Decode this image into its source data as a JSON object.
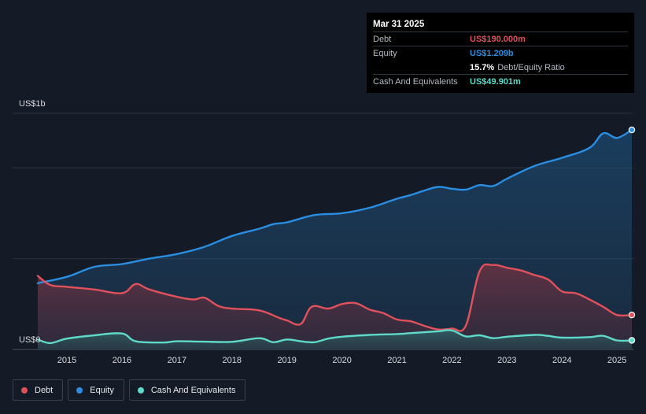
{
  "colors": {
    "debt": "#e0515c",
    "equity": "#2a8ee2",
    "cash": "#5fd9c9",
    "grid": "#2c3340",
    "axis_text": "#d6d9de"
  },
  "tooltip": {
    "date": "Mar 31 2025",
    "rows": {
      "debt": {
        "label": "Debt",
        "value": "US$190.000m"
      },
      "equity": {
        "label": "Equity",
        "value": "US$1.209b"
      },
      "ratio": {
        "value": "15.7%",
        "label": "Debt/Equity Ratio"
      },
      "cash": {
        "label": "Cash And Equivalents",
        "value": "US$49.901m"
      }
    }
  },
  "legend": {
    "debt": "Debt",
    "equity": "Equity",
    "cash": "Cash And Equivalents"
  },
  "chart_data": {
    "type": "area",
    "y_unit": "US$ millions",
    "ylim": [
      0,
      1300
    ],
    "xlim": [
      2014.47,
      2025.27
    ],
    "y_tick_labels": [
      {
        "value": 1300,
        "label": "US$1b"
      },
      {
        "value": 0,
        "label": "US$0"
      }
    ],
    "gridlines": [
      1300,
      1000,
      500,
      0
    ],
    "x_ticks": [
      2015,
      2016,
      2017,
      2018,
      2019,
      2020,
      2021,
      2022,
      2023,
      2024,
      2025
    ],
    "legend_position": "bottom-left",
    "series": [
      {
        "name": "Debt",
        "key": "debt",
        "points": [
          [
            2014.47,
            405
          ],
          [
            2014.7,
            355
          ],
          [
            2015.0,
            345
          ],
          [
            2015.5,
            330
          ],
          [
            2016.0,
            310
          ],
          [
            2016.25,
            360
          ],
          [
            2016.5,
            330
          ],
          [
            2017.0,
            290
          ],
          [
            2017.3,
            275
          ],
          [
            2017.5,
            285
          ],
          [
            2017.75,
            240
          ],
          [
            2018.0,
            225
          ],
          [
            2018.5,
            215
          ],
          [
            2018.85,
            175
          ],
          [
            2019.0,
            160
          ],
          [
            2019.25,
            140
          ],
          [
            2019.45,
            235
          ],
          [
            2019.75,
            225
          ],
          [
            2020.0,
            250
          ],
          [
            2020.25,
            255
          ],
          [
            2020.5,
            220
          ],
          [
            2020.75,
            200
          ],
          [
            2021.0,
            165
          ],
          [
            2021.25,
            155
          ],
          [
            2021.5,
            130
          ],
          [
            2021.75,
            110
          ],
          [
            2022.0,
            115
          ],
          [
            2022.25,
            130
          ],
          [
            2022.5,
            430
          ],
          [
            2022.75,
            465
          ],
          [
            2023.0,
            450
          ],
          [
            2023.25,
            435
          ],
          [
            2023.5,
            410
          ],
          [
            2023.75,
            385
          ],
          [
            2024.0,
            320
          ],
          [
            2024.25,
            310
          ],
          [
            2024.5,
            275
          ],
          [
            2024.75,
            235
          ],
          [
            2025.0,
            190
          ],
          [
            2025.27,
            190
          ]
        ]
      },
      {
        "name": "Equity",
        "key": "equity",
        "points": [
          [
            2014.47,
            365
          ],
          [
            2015.0,
            400
          ],
          [
            2015.5,
            455
          ],
          [
            2016.0,
            470
          ],
          [
            2016.5,
            500
          ],
          [
            2017.0,
            525
          ],
          [
            2017.5,
            565
          ],
          [
            2018.0,
            625
          ],
          [
            2018.5,
            665
          ],
          [
            2018.75,
            690
          ],
          [
            2019.0,
            700
          ],
          [
            2019.5,
            740
          ],
          [
            2020.0,
            750
          ],
          [
            2020.5,
            780
          ],
          [
            2021.0,
            830
          ],
          [
            2021.25,
            850
          ],
          [
            2021.5,
            875
          ],
          [
            2021.75,
            895
          ],
          [
            2022.0,
            885
          ],
          [
            2022.25,
            880
          ],
          [
            2022.5,
            905
          ],
          [
            2022.75,
            900
          ],
          [
            2023.0,
            940
          ],
          [
            2023.5,
            1010
          ],
          [
            2024.0,
            1055
          ],
          [
            2024.5,
            1110
          ],
          [
            2024.75,
            1190
          ],
          [
            2025.0,
            1165
          ],
          [
            2025.27,
            1209
          ]
        ]
      },
      {
        "name": "Cash And Equivalents",
        "key": "cash",
        "points": [
          [
            2014.47,
            55
          ],
          [
            2014.7,
            35
          ],
          [
            2015.0,
            60
          ],
          [
            2015.5,
            78
          ],
          [
            2016.0,
            88
          ],
          [
            2016.25,
            45
          ],
          [
            2016.75,
            38
          ],
          [
            2017.0,
            45
          ],
          [
            2017.5,
            43
          ],
          [
            2018.0,
            42
          ],
          [
            2018.5,
            62
          ],
          [
            2018.75,
            40
          ],
          [
            2019.0,
            55
          ],
          [
            2019.25,
            45
          ],
          [
            2019.5,
            40
          ],
          [
            2019.75,
            60
          ],
          [
            2020.0,
            70
          ],
          [
            2020.5,
            80
          ],
          [
            2021.0,
            85
          ],
          [
            2021.25,
            90
          ],
          [
            2021.5,
            95
          ],
          [
            2021.75,
            100
          ],
          [
            2022.0,
            105
          ],
          [
            2022.25,
            72
          ],
          [
            2022.5,
            78
          ],
          [
            2022.75,
            62
          ],
          [
            2023.0,
            70
          ],
          [
            2023.5,
            80
          ],
          [
            2023.75,
            75
          ],
          [
            2024.0,
            65
          ],
          [
            2024.5,
            68
          ],
          [
            2024.75,
            75
          ],
          [
            2025.0,
            50
          ],
          [
            2025.27,
            49.9
          ]
        ]
      }
    ]
  }
}
